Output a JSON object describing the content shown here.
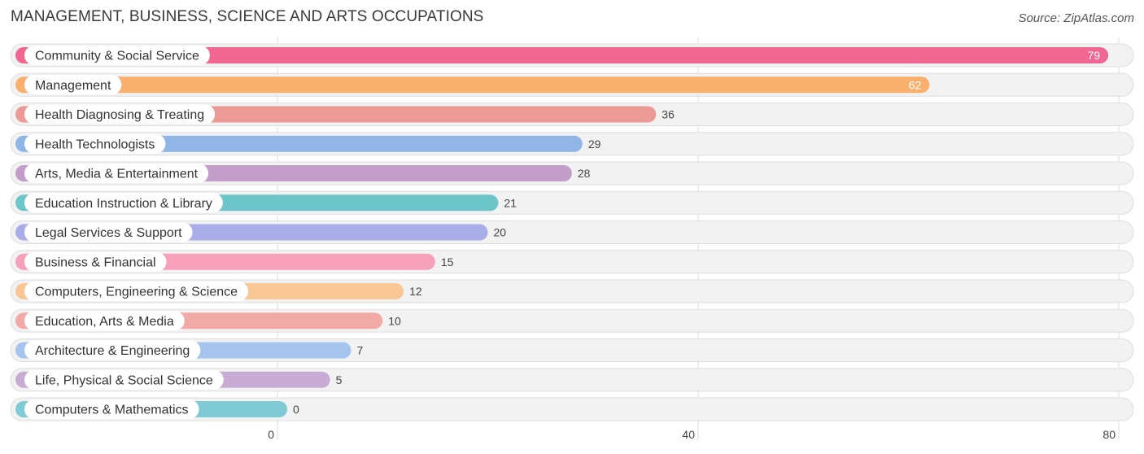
{
  "header": {
    "title": "MANAGEMENT, BUSINESS, SCIENCE AND ARTS OCCUPATIONS",
    "source": "Source: ZipAtlas.com"
  },
  "chart_data": {
    "type": "bar",
    "orientation": "horizontal",
    "title": "MANAGEMENT, BUSINESS, SCIENCE AND ARTS OCCUPATIONS",
    "xlabel": "",
    "ylabel": "",
    "xlim": [
      0,
      80
    ],
    "ticks": [
      0,
      40,
      80
    ],
    "tick_labels": [
      "0",
      "40",
      "80"
    ],
    "grid": true,
    "categories": [
      "Community & Social Service",
      "Management",
      "Health Diagnosing & Treating",
      "Health Technologists",
      "Arts, Media & Entertainment",
      "Education Instruction & Library",
      "Legal Services & Support",
      "Business & Financial",
      "Computers, Engineering & Science",
      "Education, Arts & Media",
      "Architecture & Engineering",
      "Life, Physical & Social Science",
      "Computers & Mathematics"
    ],
    "values": [
      79,
      62,
      36,
      29,
      28,
      21,
      20,
      15,
      12,
      10,
      7,
      5,
      0
    ],
    "colors": [
      "#f06892",
      "#f9b06c",
      "#ec9a95",
      "#90b5e7",
      "#c39dc9",
      "#6cc6c9",
      "#a9aee8",
      "#f6a0ba",
      "#f8c794",
      "#f2aaa6",
      "#a5c4ee",
      "#c9acd4",
      "#7ecbd6"
    ]
  }
}
